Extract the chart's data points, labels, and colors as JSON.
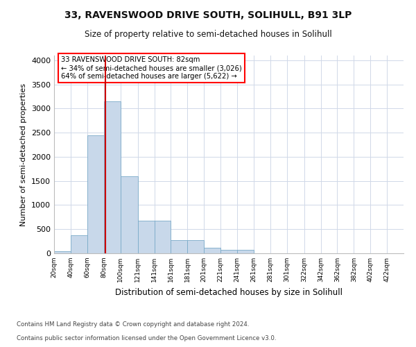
{
  "title1": "33, RAVENSWOOD DRIVE SOUTH, SOLIHULL, B91 3LP",
  "title2": "Size of property relative to semi-detached houses in Solihull",
  "xlabel": "Distribution of semi-detached houses by size in Solihull",
  "ylabel": "Number of semi-detached properties",
  "footnote1": "Contains HM Land Registry data © Crown copyright and database right 2024.",
  "footnote2": "Contains public sector information licensed under the Open Government Licence v3.0.",
  "bar_color": "#c8d8ea",
  "bar_edge_color": "#7aaac8",
  "property_line_color": "#cc0000",
  "property_sqm": 82,
  "annotation_title": "33 RAVENSWOOD DRIVE SOUTH: 82sqm",
  "annotation_line2": "← 34% of semi-detached houses are smaller (3,026)",
  "annotation_line3": "64% of semi-detached houses are larger (5,622) →",
  "bins": [
    20,
    40,
    60,
    80,
    100,
    121,
    141,
    161,
    181,
    201,
    221,
    241,
    261,
    281,
    301,
    322,
    342,
    362,
    382,
    402,
    422
  ],
  "counts": [
    50,
    380,
    2450,
    3150,
    1600,
    680,
    680,
    270,
    270,
    110,
    65,
    65,
    0,
    0,
    0,
    0,
    0,
    0,
    0,
    0
  ],
  "ylim": [
    0,
    4100
  ],
  "yticks": [
    0,
    500,
    1000,
    1500,
    2000,
    2500,
    3000,
    3500,
    4000
  ],
  "background_color": "#ffffff",
  "grid_color": "#d0d8e8"
}
